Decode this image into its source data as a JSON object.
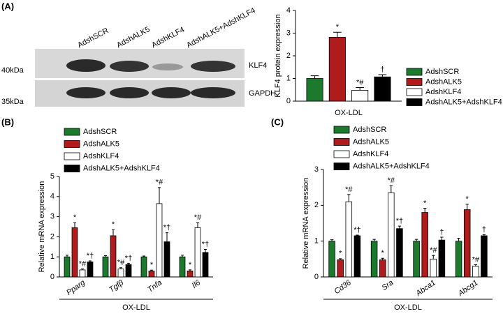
{
  "panels": [
    "(A)",
    "(B)",
    "(C)"
  ],
  "blot": {
    "lanes": [
      "AdshSCR",
      "AdshALK5",
      "AdshKLF4",
      "AdshALK5+AdshKLF4"
    ],
    "markers": [
      "40kDa",
      "35kDa"
    ],
    "bands": [
      "KLF4",
      "GAPDH"
    ]
  },
  "chart_data": [
    {
      "type": "bar",
      "y_label": "KLF4 protein expression",
      "categories": [
        "OX-LDL"
      ],
      "ylim": [
        0,
        4
      ],
      "yticks": [
        0,
        1,
        2,
        3,
        4
      ],
      "series": [
        {
          "name": "AdshSCR",
          "color": "#1b7a2c",
          "values": [
            1.0
          ],
          "errors": [
            0.12
          ],
          "annotations": [
            null
          ]
        },
        {
          "name": "AdshALK5",
          "color": "#b01c1c",
          "values": [
            2.82
          ],
          "errors": [
            0.22
          ],
          "annotations": [
            "*"
          ]
        },
        {
          "name": "AdshKLF4",
          "color": "#ffffff",
          "values": [
            0.48
          ],
          "errors": [
            0.12
          ],
          "annotations": [
            "*#"
          ]
        },
        {
          "name": "AdshALK5+AdshKLF4",
          "color": "#000000",
          "values": [
            1.07
          ],
          "errors": [
            0.1
          ],
          "annotations": [
            "†"
          ]
        }
      ]
    },
    {
      "type": "bar",
      "y_label": "Relative mRNA expression",
      "x_label": "OX-LDL",
      "categories": [
        "Pparg",
        "Tgfβ",
        "Tnfa",
        "Il6"
      ],
      "ylim": [
        0,
        5
      ],
      "yticks": [
        0,
        1,
        2,
        3,
        4,
        5
      ],
      "series": [
        {
          "name": "AdshSCR",
          "color": "#1b7a2c",
          "values": [
            1.0,
            1.0,
            1.0,
            1.0
          ],
          "errors": [
            0.08,
            0.06,
            0.04,
            0.08
          ],
          "annotations": [
            null,
            null,
            null,
            null
          ]
        },
        {
          "name": "AdshALK5",
          "color": "#b01c1c",
          "values": [
            2.45,
            2.05,
            0.3,
            0.3
          ],
          "errors": [
            0.25,
            0.3,
            0.04,
            0.05
          ],
          "annotations": [
            "*",
            "*",
            "*",
            "*"
          ]
        },
        {
          "name": "AdshKLF4",
          "color": "#ffffff",
          "values": [
            0.35,
            0.4,
            3.65,
            2.45
          ],
          "errors": [
            0.05,
            0.06,
            0.8,
            0.25
          ],
          "annotations": [
            "*#",
            "*#",
            "*#",
            "*#"
          ]
        },
        {
          "name": "AdshALK5+AdshKLF4",
          "color": "#000000",
          "values": [
            0.75,
            0.62,
            1.75,
            1.22
          ],
          "errors": [
            0.05,
            0.06,
            0.45,
            0.15
          ],
          "annotations": [
            "*†",
            "*†",
            "*†",
            "*†"
          ]
        }
      ]
    },
    {
      "type": "bar",
      "y_label": "Relative mRNA expression",
      "x_label": "OX-LDL",
      "categories": [
        "Cd36",
        "Sra",
        "Abca1",
        "Abcg1"
      ],
      "ylim": [
        0,
        3
      ],
      "yticks": [
        0,
        1,
        2,
        3
      ],
      "series": [
        {
          "name": "AdshSCR",
          "color": "#1b7a2c",
          "values": [
            1.0,
            1.0,
            1.0,
            1.0
          ],
          "errors": [
            0.04,
            0.05,
            0.05,
            0.08
          ],
          "annotations": [
            null,
            null,
            null,
            null
          ]
        },
        {
          "name": "AdshALK5",
          "color": "#b01c1c",
          "values": [
            0.48,
            0.48,
            1.8,
            1.88
          ],
          "errors": [
            0.03,
            0.04,
            0.12,
            0.15
          ],
          "annotations": [
            "*",
            "*",
            "*",
            "*"
          ]
        },
        {
          "name": "AdshKLF4",
          "color": "#ffffff",
          "values": [
            2.1,
            2.35,
            0.5,
            0.3
          ],
          "errors": [
            0.2,
            0.2,
            0.1,
            0.04
          ],
          "annotations": [
            "*#",
            "*#",
            "*#",
            "*#"
          ]
        },
        {
          "name": "AdshALK5+AdshKLF4",
          "color": "#000000",
          "values": [
            1.15,
            1.35,
            1.03,
            1.15
          ],
          "errors": [
            0.02,
            0.07,
            0.08,
            0.03
          ],
          "annotations": [
            "*†",
            "*†",
            "†",
            "†"
          ]
        }
      ]
    }
  ]
}
